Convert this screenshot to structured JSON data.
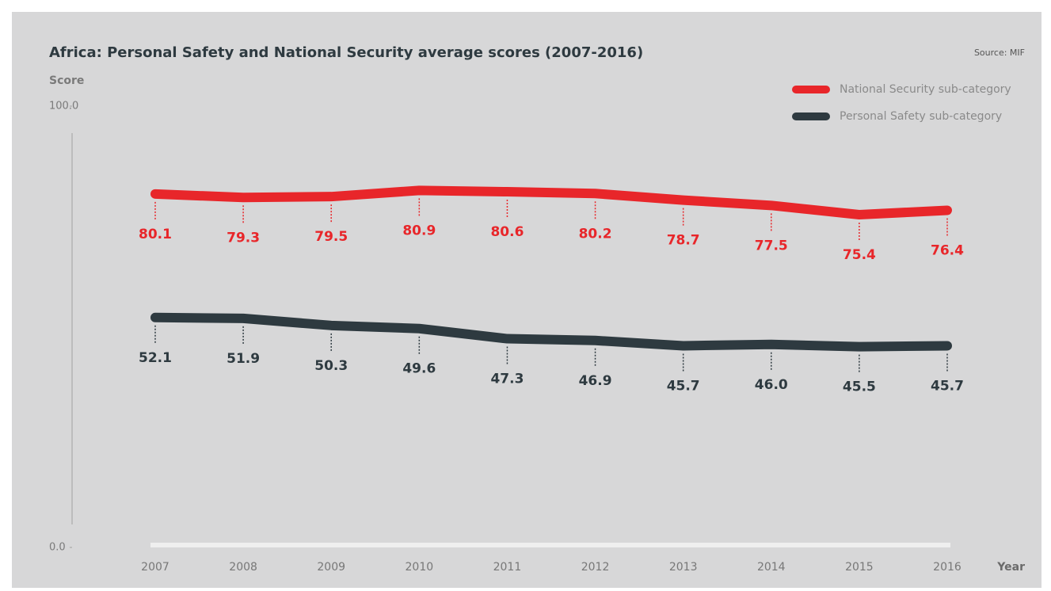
{
  "chart_data": {
    "type": "line",
    "title": "Africa: Personal Safety and National Security average scores (2007-2016)",
    "source": "Source: MIF",
    "y_label": "Score",
    "x_label": "Year",
    "categories": [
      "2007",
      "2008",
      "2009",
      "2010",
      "2011",
      "2012",
      "2013",
      "2014",
      "2015",
      "2016"
    ],
    "series": [
      {
        "name": "National Security sub-category",
        "color": "#e8262a",
        "values": [
          80.1,
          79.3,
          79.5,
          80.9,
          80.6,
          80.2,
          78.7,
          77.5,
          75.4,
          76.4
        ]
      },
      {
        "name": "Personal Safety sub-category",
        "color": "#2e3a40",
        "values": [
          52.1,
          51.9,
          50.3,
          49.6,
          47.3,
          46.9,
          45.7,
          46.0,
          45.5,
          45.7
        ],
        "value_labels": [
          "52.1",
          "51.9",
          "50.3",
          "49.6",
          "47.3",
          "46.9",
          "45.7",
          "46.0",
          "45.5",
          "45.7"
        ]
      }
    ],
    "ylim": [
      0,
      100
    ],
    "yticks": [
      {
        "value": 0,
        "label": "0.0"
      },
      {
        "value": 100,
        "label": "100.0"
      }
    ],
    "legend": "top-right"
  }
}
